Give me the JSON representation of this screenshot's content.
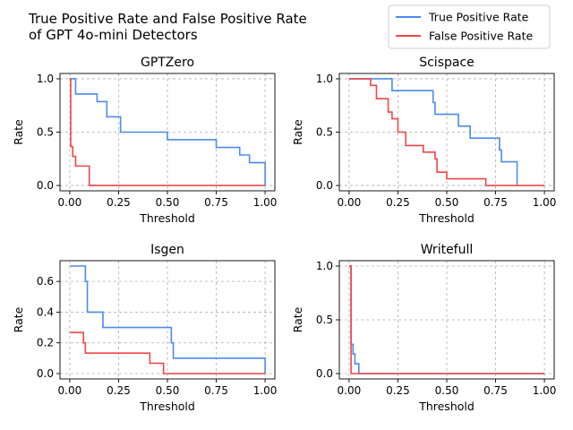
{
  "figure": {
    "title_line1": "True Positive Rate and False Positive Rate",
    "title_line2": "of GPT 4o-mini Detectors"
  },
  "legend": {
    "placement": "top-right",
    "entries": [
      {
        "label": "True Positive Rate",
        "color": "#4a8af0"
      },
      {
        "label": "False Positive Rate",
        "color": "#f04646"
      }
    ]
  },
  "chart_data": [
    {
      "type": "line",
      "title": "GPTZero",
      "xlabel": "Threshold",
      "ylabel": "Rate",
      "xlim": [
        -0.05,
        1.05
      ],
      "ylim": [
        -0.05,
        1.05
      ],
      "xticks": [
        0.0,
        0.25,
        0.5,
        0.75,
        1.0
      ],
      "xtick_labels": [
        "0.00",
        "0.25",
        "0.50",
        "0.75",
        "1.00"
      ],
      "yticks": [
        0.0,
        0.5,
        1.0
      ],
      "ytick_labels": [
        "0.0",
        "0.5",
        "1.0"
      ],
      "grid": true,
      "step": true,
      "series": [
        {
          "name": "True Positive Rate",
          "color": "#4a8af0",
          "x": [
            0,
            0.03,
            0.03,
            0.14,
            0.14,
            0.19,
            0.19,
            0.26,
            0.26,
            0.5,
            0.5,
            0.75,
            0.75,
            0.87,
            0.87,
            0.92,
            0.92,
            1.0,
            1.0
          ],
          "y": [
            1.0,
            1.0,
            0.857,
            0.857,
            0.786,
            0.786,
            0.643,
            0.643,
            0.5,
            0.5,
            0.429,
            0.429,
            0.357,
            0.357,
            0.286,
            0.286,
            0.214,
            0.214,
            0.0
          ]
        },
        {
          "name": "False Positive Rate",
          "color": "#f04646",
          "x": [
            0,
            0.005,
            0.005,
            0.015,
            0.015,
            0.03,
            0.03,
            0.1,
            0.1,
            1.0
          ],
          "y": [
            1.0,
            1.0,
            0.364,
            0.364,
            0.273,
            0.273,
            0.182,
            0.182,
            0.0,
            0.0
          ]
        }
      ]
    },
    {
      "type": "line",
      "title": "Scispace",
      "xlabel": "Threshold",
      "ylabel": "Rate",
      "xlim": [
        -0.05,
        1.05
      ],
      "ylim": [
        -0.05,
        1.05
      ],
      "xticks": [
        0.0,
        0.25,
        0.5,
        0.75,
        1.0
      ],
      "xtick_labels": [
        "0.00",
        "0.25",
        "0.50",
        "0.75",
        "1.00"
      ],
      "yticks": [
        0.0,
        0.5,
        1.0
      ],
      "ytick_labels": [
        "0.0",
        "0.5",
        "1.0"
      ],
      "grid": true,
      "step": true,
      "series": [
        {
          "name": "True Positive Rate",
          "color": "#4a8af0",
          "x": [
            0,
            0.22,
            0.22,
            0.43,
            0.43,
            0.44,
            0.44,
            0.56,
            0.56,
            0.62,
            0.62,
            0.77,
            0.77,
            0.78,
            0.78,
            0.86,
            0.86
          ],
          "y": [
            1.0,
            1.0,
            0.889,
            0.889,
            0.778,
            0.778,
            0.667,
            0.667,
            0.556,
            0.556,
            0.444,
            0.444,
            0.333,
            0.333,
            0.222,
            0.222,
            0.0
          ]
        },
        {
          "name": "False Positive Rate",
          "color": "#f04646",
          "x": [
            0,
            0.11,
            0.11,
            0.14,
            0.14,
            0.2,
            0.2,
            0.22,
            0.22,
            0.25,
            0.25,
            0.29,
            0.29,
            0.38,
            0.38,
            0.44,
            0.44,
            0.45,
            0.45,
            0.5,
            0.5,
            0.7,
            0.7,
            1.0
          ],
          "y": [
            1.0,
            1.0,
            0.938,
            0.938,
            0.813,
            0.813,
            0.688,
            0.688,
            0.625,
            0.625,
            0.5,
            0.5,
            0.375,
            0.375,
            0.313,
            0.313,
            0.25,
            0.25,
            0.125,
            0.125,
            0.0625,
            0.0625,
            0.0,
            0.0
          ]
        }
      ]
    },
    {
      "type": "line",
      "title": "Isgen",
      "xlabel": "Threshold",
      "ylabel": "Rate",
      "xlim": [
        -0.05,
        1.05
      ],
      "ylim": [
        -0.035,
        0.735
      ],
      "xticks": [
        0.0,
        0.25,
        0.5,
        0.75,
        1.0
      ],
      "xtick_labels": [
        "0.00",
        "0.25",
        "0.50",
        "0.75",
        "1.00"
      ],
      "yticks": [
        0.0,
        0.2,
        0.4,
        0.6
      ],
      "ytick_labels": [
        "0.0",
        "0.2",
        "0.4",
        "0.6"
      ],
      "grid": true,
      "step": true,
      "series": [
        {
          "name": "True Positive Rate",
          "color": "#4a8af0",
          "x": [
            0,
            0.08,
            0.08,
            0.09,
            0.09,
            0.17,
            0.17,
            0.52,
            0.52,
            0.53,
            0.53,
            1.0,
            1.0
          ],
          "y": [
            0.7,
            0.7,
            0.6,
            0.6,
            0.4,
            0.4,
            0.3,
            0.3,
            0.2,
            0.2,
            0.1,
            0.1,
            0.0
          ]
        },
        {
          "name": "False Positive Rate",
          "color": "#f04646",
          "x": [
            0,
            0.07,
            0.07,
            0.08,
            0.08,
            0.41,
            0.41,
            0.48,
            0.48,
            1.0
          ],
          "y": [
            0.267,
            0.267,
            0.2,
            0.2,
            0.133,
            0.133,
            0.067,
            0.067,
            0.0,
            0.0
          ]
        }
      ]
    },
    {
      "type": "line",
      "title": "Writefull",
      "xlabel": "Threshold",
      "ylabel": "Rate",
      "xlim": [
        -0.05,
        1.05
      ],
      "ylim": [
        -0.05,
        1.05
      ],
      "xticks": [
        0.0,
        0.25,
        0.5,
        0.75,
        1.0
      ],
      "xtick_labels": [
        "0.00",
        "0.25",
        "0.50",
        "0.75",
        "1.00"
      ],
      "yticks": [
        0.0,
        0.5,
        1.0
      ],
      "ytick_labels": [
        "0.0",
        "0.5",
        "1.0"
      ],
      "grid": true,
      "step": true,
      "series": [
        {
          "name": "True Positive Rate",
          "color": "#4a8af0",
          "x": [
            0,
            0.01,
            0.01,
            0.02,
            0.02,
            0.03,
            0.03,
            0.05,
            0.05,
            1.0
          ],
          "y": [
            1.0,
            1.0,
            0.273,
            0.273,
            0.182,
            0.182,
            0.091,
            0.091,
            0.0,
            0.0
          ]
        },
        {
          "name": "False Positive Rate",
          "color": "#f04646",
          "x": [
            0,
            0.01,
            0.01,
            1.0
          ],
          "y": [
            1.0,
            1.0,
            0.0,
            0.0
          ]
        }
      ]
    }
  ]
}
